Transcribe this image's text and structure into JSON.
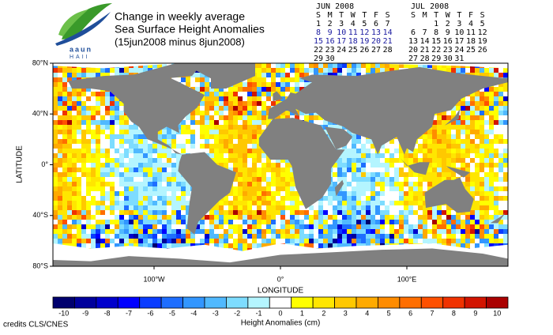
{
  "logo": {
    "line1": "aaun",
    "line2": "HAII"
  },
  "title": {
    "line1": "Change in weekly average",
    "line2": "Sea Surface Height Anomalies",
    "line3": "(15jun2008 minus 8jun2008)"
  },
  "calendars": [
    {
      "month": "JUN 2008",
      "weekdays": [
        "S",
        "M",
        "T",
        "W",
        "T",
        "F",
        "S"
      ],
      "start_column": 0,
      "highlighted_weeks": [
        1,
        2
      ],
      "weeks": [
        [
          1,
          2,
          3,
          4,
          5,
          6,
          7
        ],
        [
          8,
          9,
          10,
          11,
          12,
          13,
          14
        ],
        [
          15,
          16,
          17,
          18,
          19,
          20,
          21
        ],
        [
          22,
          23,
          24,
          25,
          26,
          27,
          28
        ],
        [
          29,
          30
        ]
      ]
    },
    {
      "month": "JUL 2008",
      "weekdays": [
        "S",
        "M",
        "T",
        "W",
        "T",
        "F",
        "S"
      ],
      "start_column": 2,
      "highlighted_weeks": [],
      "weeks": [
        [
          1,
          2,
          3,
          4,
          5
        ],
        [
          6,
          7,
          8,
          9,
          10,
          11,
          12
        ],
        [
          13,
          14,
          15,
          16,
          17,
          18,
          19
        ],
        [
          20,
          21,
          22,
          23,
          24,
          25,
          26
        ],
        [
          27,
          28,
          29,
          30,
          31
        ]
      ]
    }
  ],
  "map": {
    "y_axis_label": "LATITUDE",
    "x_axis_label": "LONGITUDE",
    "lat_ticks": [
      "80°N",
      "40°N",
      "0°",
      "40°S",
      "80°S"
    ],
    "lon_ticks": [
      "100°W",
      "0°",
      "100°E"
    ]
  },
  "colorbar": {
    "label": "Height Anomalies (cm)",
    "ticks": [
      -10,
      -9,
      -8,
      -7,
      -6,
      -5,
      -4,
      -3,
      -2,
      -1,
      0,
      1,
      2,
      3,
      4,
      5,
      6,
      7,
      8,
      9,
      10
    ]
  },
  "credits": "credits CLS/CNES"
}
